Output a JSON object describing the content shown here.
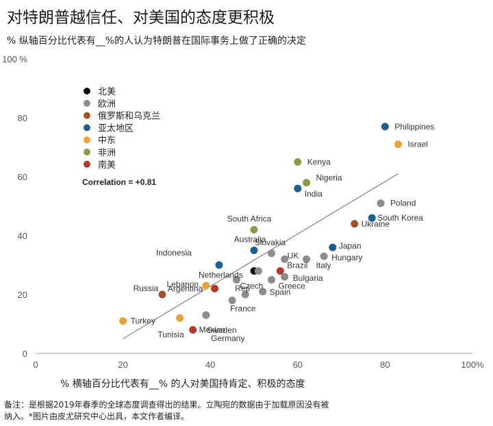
{
  "header": {
    "title": "对特朗普越信任、对美国的态度更积极",
    "subtitle": "% 纵轴百分比代表有__%的人认为特朗普在国际事务上做了正确的决定"
  },
  "footer": {
    "note": "备注：是根据2019年春季的全球态度调查得出的结果。立陶宛的数据由于加载原因没有被纳入。*图片由皮尤研究中心出具，本文作者编译。"
  },
  "chart_data": {
    "type": "scatter",
    "title": "对特朗普越信任、对美国的态度更积极",
    "xlabel": "% 横轴百分比代表有__% 的人对美国持肯定、积极的态度",
    "ylabel": "% 纵轴百分比代表有__%的人认为特朗普在国际事务上做了正确的决定",
    "xlim": [
      0,
      100
    ],
    "ylim": [
      0,
      100
    ],
    "x_ticks": [
      "0",
      "20",
      "40",
      "60",
      "80",
      "100%"
    ],
    "y_ticks": [
      "0",
      "20",
      "40",
      "60",
      "80",
      "100 %"
    ],
    "grid": false,
    "legend_placement": "top-left",
    "annotation": "Correlation = +0.81",
    "regression_line": {
      "x": [
        20,
        83
      ],
      "y": [
        5,
        61
      ]
    },
    "colors": {
      "北美": "#111111",
      "欧洲": "#8c8c8c",
      "俄罗斯和乌克兰": "#a0522d",
      "亚太地区": "#1f5f8b",
      "中东": "#e8a33d",
      "非洲": "#8a9a4a",
      "南美": "#b03a2e"
    },
    "series": [
      {
        "name": "北美",
        "points": [
          {
            "label": "",
            "x": 50,
            "y": 28
          }
        ]
      },
      {
        "name": "欧洲",
        "points": [
          {
            "label": "Poland",
            "x": 79,
            "y": 51
          },
          {
            "label": "Slovakia",
            "x": 54,
            "y": 34
          },
          {
            "label": "UK",
            "x": 57,
            "y": 32
          },
          {
            "label": "Hungary",
            "x": 66,
            "y": 33
          },
          {
            "label": "Italy",
            "x": 62,
            "y": 32
          },
          {
            "label": "Netherlands",
            "x": 51,
            "y": 28
          },
          {
            "label": "Bulgaria",
            "x": 57,
            "y": 26
          },
          {
            "label": "Greece",
            "x": 54,
            "y": 25
          },
          {
            "label": "Czech",
            "x": 46,
            "y": 25
          },
          {
            "label": "Rep",
            "x": 48,
            "y": 20
          },
          {
            "label": "Spain",
            "x": 52,
            "y": 21
          },
          {
            "label": "France",
            "x": 45,
            "y": 18
          },
          {
            "label": "Sweden",
            "x": 39,
            "y": 13
          },
          {
            "label": "Germany",
            "x": 39,
            "y": 13
          }
        ]
      },
      {
        "name": "俄罗斯和乌克兰",
        "points": [
          {
            "label": "Ukraine",
            "x": 73,
            "y": 44
          },
          {
            "label": "Russia",
            "x": 29,
            "y": 20
          }
        ]
      },
      {
        "name": "亚太地区",
        "points": [
          {
            "label": "Philippines",
            "x": 80,
            "y": 77
          },
          {
            "label": "India",
            "x": 60,
            "y": 56
          },
          {
            "label": "South Korea",
            "x": 77,
            "y": 46
          },
          {
            "label": "Japan",
            "x": 68,
            "y": 36
          },
          {
            "label": "Australia",
            "x": 50,
            "y": 35
          },
          {
            "label": "Indonesia",
            "x": 42,
            "y": 30
          }
        ]
      },
      {
        "name": "中东",
        "points": [
          {
            "label": "Israel",
            "x": 83,
            "y": 71
          },
          {
            "label": "Lebanon",
            "x": 39,
            "y": 23
          },
          {
            "label": "Turkey",
            "x": 20,
            "y": 11
          },
          {
            "label": "Tunisia",
            "x": 33,
            "y": 12
          }
        ]
      },
      {
        "name": "非洲",
        "points": [
          {
            "label": "Kenya",
            "x": 60,
            "y": 65
          },
          {
            "label": "Nigeria",
            "x": 62,
            "y": 58
          },
          {
            "label": "South Africa",
            "x": 50,
            "y": 42
          }
        ]
      },
      {
        "name": "南美",
        "points": [
          {
            "label": "Brazil",
            "x": 56,
            "y": 28
          },
          {
            "label": "Argentina",
            "x": 41,
            "y": 22
          },
          {
            "label": "Mexico",
            "x": 36,
            "y": 8
          }
        ]
      }
    ]
  }
}
